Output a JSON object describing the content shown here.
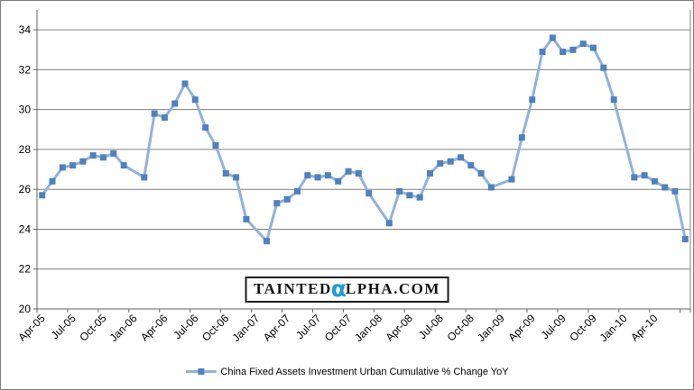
{
  "legend": {
    "label": "China Fixed Assets Investment Urban Cumulative % Change YoY"
  },
  "watermark": {
    "pre": "TAINTED",
    "alpha": "α",
    "post": "LPHA.COM",
    "alpha_color": "#1E9CD8"
  },
  "colors": {
    "line": "#91B2DB",
    "marker": "#4E81BD",
    "gridline": "#808080",
    "axis": "#666666",
    "plot_border": "#808080",
    "label_text": "#000000"
  },
  "chart_data": {
    "type": "line",
    "title": "",
    "xlabel": "",
    "ylabel": "",
    "grid": true,
    "legend_position": "bottom",
    "marker_shape": "square",
    "ylim": [
      20,
      35
    ],
    "yticks": [
      20,
      22,
      24,
      26,
      28,
      30,
      32,
      34
    ],
    "x_tick_label_every": 3,
    "x_tick_labels": [
      "Apr-05",
      "Jul-05",
      "Oct-05",
      "Jan-06",
      "Apr-06",
      "Jul-06",
      "Oct-06",
      "Jan-07",
      "Apr-07",
      "Jul-07",
      "Oct-07",
      "Jan-08",
      "Apr-08",
      "Jul-08",
      "Oct-08",
      "Jan-09",
      "Apr-09",
      "Jul-09",
      "Oct-09",
      "Jan-10",
      "Apr-10"
    ],
    "series": [
      {
        "name": "China Fixed Assets Investment Urban Cumulative % Change YoY",
        "x": [
          "Apr-05",
          "May-05",
          "Jun-05",
          "Jul-05",
          "Aug-05",
          "Sep-05",
          "Oct-05",
          "Nov-05",
          "Dec-05",
          "Jan-06",
          "Feb-06",
          "Mar-06",
          "Apr-06",
          "May-06",
          "Jun-06",
          "Jul-06",
          "Aug-06",
          "Sep-06",
          "Oct-06",
          "Nov-06",
          "Dec-06",
          "Jan-07",
          "Feb-07",
          "Mar-07",
          "Apr-07",
          "May-07",
          "Jun-07",
          "Jul-07",
          "Aug-07",
          "Sep-07",
          "Oct-07",
          "Nov-07",
          "Dec-07",
          "Jan-08",
          "Feb-08",
          "Mar-08",
          "Apr-08",
          "May-08",
          "Jun-08",
          "Jul-08",
          "Aug-08",
          "Sep-08",
          "Oct-08",
          "Nov-08",
          "Dec-08",
          "Jan-09",
          "Feb-09",
          "Mar-09",
          "Apr-09",
          "May-09",
          "Jun-09",
          "Jul-09",
          "Aug-09",
          "Sep-09",
          "Oct-09",
          "Nov-09",
          "Dec-09",
          "Jan-10",
          "Feb-10",
          "Mar-10",
          "Apr-10",
          "May-10",
          "Jun-10",
          "Jul-10"
        ],
        "values": [
          25.7,
          26.4,
          27.1,
          27.2,
          27.4,
          27.7,
          27.6,
          27.8,
          27.2,
          null,
          26.6,
          29.8,
          29.6,
          30.3,
          31.3,
          30.5,
          29.1,
          28.2,
          26.8,
          26.6,
          24.5,
          null,
          23.4,
          25.3,
          25.5,
          25.9,
          26.7,
          26.6,
          26.7,
          26.4,
          26.9,
          26.8,
          25.8,
          null,
          24.3,
          25.9,
          25.7,
          25.6,
          26.8,
          27.3,
          27.4,
          27.6,
          27.2,
          26.8,
          26.1,
          null,
          26.5,
          28.6,
          30.5,
          32.9,
          33.6,
          32.9,
          33.0,
          33.3,
          33.1,
          32.1,
          30.5,
          null,
          26.6,
          26.7,
          26.4,
          26.1,
          25.9,
          23.5
        ]
      }
    ]
  }
}
